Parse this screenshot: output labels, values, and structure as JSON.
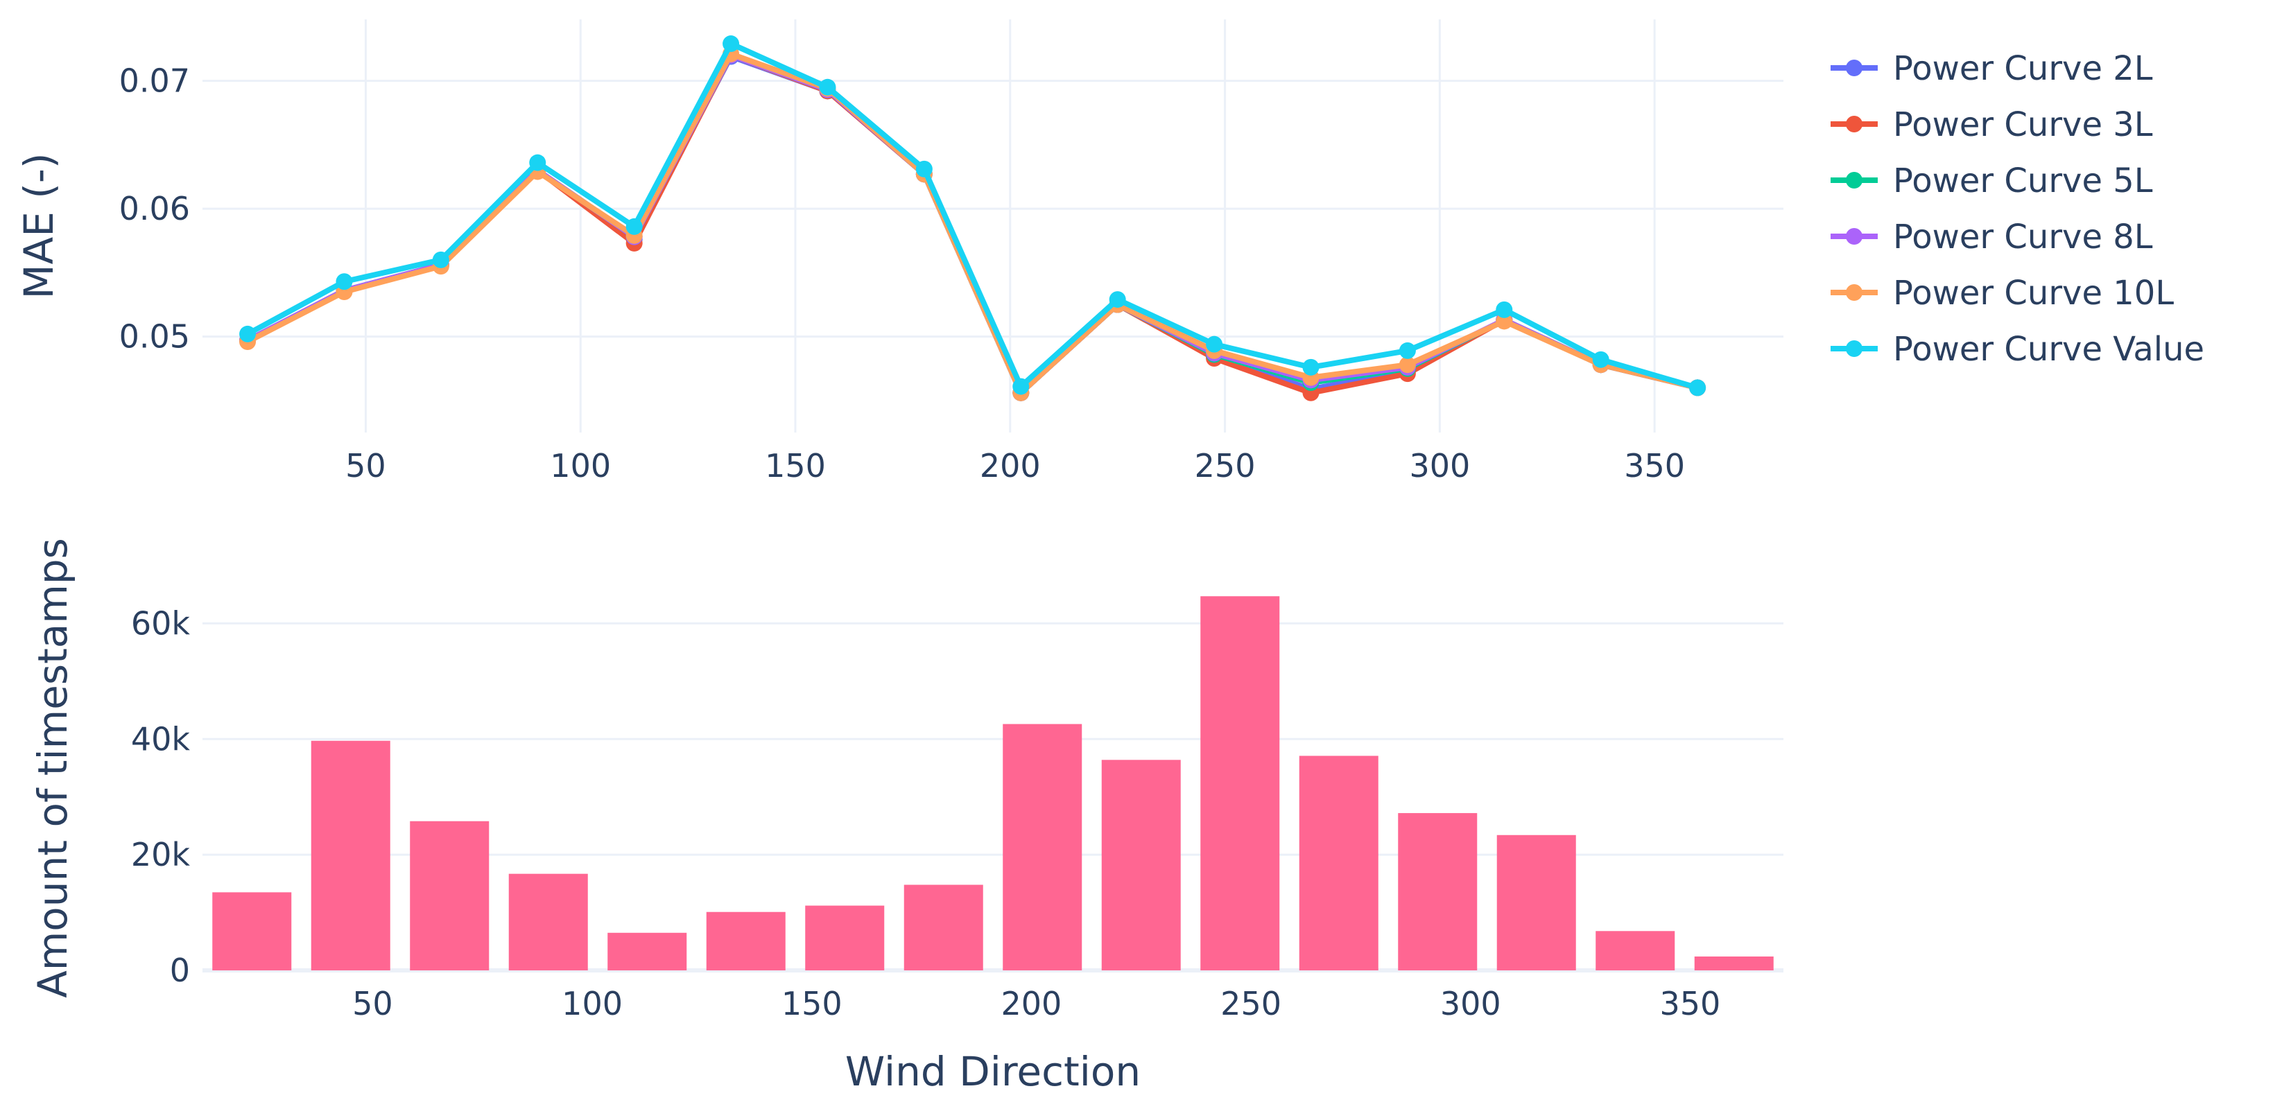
{
  "chart_data": [
    {
      "type": "line",
      "xlabel": "",
      "ylabel": "MAE (-)",
      "xlim": [
        12,
        380
      ],
      "ylim": [
        0.0425,
        0.0748
      ],
      "xticks": [
        50,
        100,
        150,
        200,
        250,
        300,
        350
      ],
      "yticks": [
        0.05,
        0.06,
        0.07
      ],
      "ytick_labels": [
        "0.05",
        "0.06",
        "0.07"
      ],
      "grid": true,
      "legend_position": "right",
      "x": [
        22.5,
        45,
        67.5,
        90,
        112.5,
        135,
        157.5,
        180,
        202.5,
        225,
        247.5,
        270,
        292.5,
        315,
        337.5,
        360
      ],
      "series": [
        {
          "name": "Power Curve 2L",
          "color": "#636efa",
          "values": [
            0.0497,
            0.0536,
            0.0556,
            0.063,
            0.0576,
            0.0719,
            0.0692,
            0.0627,
            0.0456,
            0.0525,
            0.0484,
            0.0459,
            0.0473,
            0.0513,
            0.0478,
            0.046
          ]
        },
        {
          "name": "Power Curve 3L",
          "color": "#ef553b",
          "values": [
            0.0497,
            0.0536,
            0.0556,
            0.063,
            0.0573,
            0.072,
            0.0692,
            0.0627,
            0.0456,
            0.0525,
            0.0483,
            0.0456,
            0.0471,
            0.0513,
            0.0478,
            0.046
          ]
        },
        {
          "name": "Power Curve 5L",
          "color": "#00cc96",
          "values": [
            0.0497,
            0.0536,
            0.0556,
            0.063,
            0.0578,
            0.072,
            0.0693,
            0.0627,
            0.0456,
            0.0525,
            0.0486,
            0.0464,
            0.0475,
            0.0513,
            0.0478,
            0.046
          ]
        },
        {
          "name": "Power Curve 8L",
          "color": "#ab63fa",
          "values": [
            0.0497,
            0.0536,
            0.0556,
            0.063,
            0.0578,
            0.072,
            0.0693,
            0.0627,
            0.0456,
            0.0525,
            0.0487,
            0.0466,
            0.0476,
            0.0513,
            0.0478,
            0.046
          ]
        },
        {
          "name": "Power Curve 10L",
          "color": "#ffa15a",
          "values": [
            0.0496,
            0.0535,
            0.0555,
            0.0629,
            0.0579,
            0.0721,
            0.0694,
            0.0627,
            0.0456,
            0.0525,
            0.0489,
            0.0468,
            0.0478,
            0.0512,
            0.0478,
            0.046
          ]
        },
        {
          "name": "Power Curve Value",
          "color": "#19d3f3",
          "values": [
            0.0502,
            0.0543,
            0.056,
            0.0636,
            0.0586,
            0.0729,
            0.0695,
            0.0631,
            0.0461,
            0.0529,
            0.0494,
            0.0476,
            0.0489,
            0.0521,
            0.0482,
            0.046
          ]
        }
      ]
    },
    {
      "type": "bar",
      "xlabel": "Wind Direction",
      "ylabel": "Amount of timestamps",
      "xlim": [
        11.25,
        371.25
      ],
      "ylim": [
        0,
        70000
      ],
      "xticks": [
        50,
        100,
        150,
        200,
        250,
        300,
        350
      ],
      "yticks": [
        0,
        20000,
        40000,
        60000
      ],
      "ytick_labels": [
        "0",
        "20k",
        "40k",
        "60k"
      ],
      "grid": true,
      "bar_color": "#ff6692",
      "x": [
        22.5,
        45,
        67.5,
        90,
        112.5,
        135,
        157.5,
        180,
        202.5,
        225,
        247.5,
        270,
        292.5,
        315,
        337.5,
        360
      ],
      "values": [
        13500,
        39700,
        25800,
        16700,
        6500,
        10100,
        11200,
        14800,
        42600,
        36400,
        64700,
        37100,
        27200,
        23400,
        6800,
        2400
      ]
    }
  ]
}
